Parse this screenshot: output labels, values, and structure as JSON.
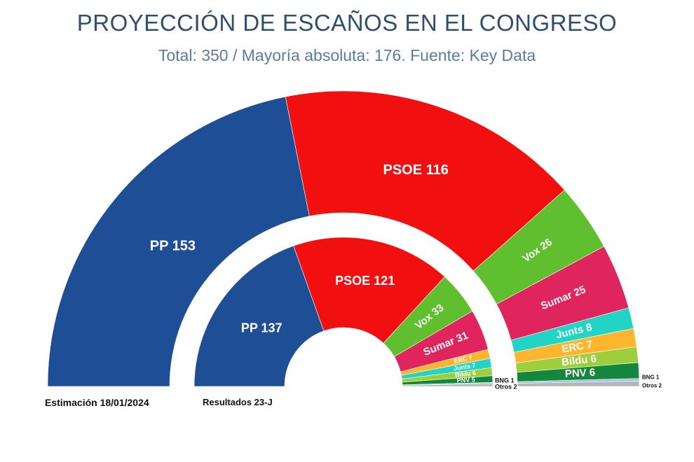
{
  "header": {
    "title": "PROYECCIÓN DE ESCAÑOS EN EL CONGRESO",
    "subtitle": "Total: 350 / Mayoría absoluta: 176. Fuente: Key Data"
  },
  "captions": {
    "outer": "Estimación 18/01/2024",
    "inner": "Resultados 23-J"
  },
  "chart_data": [
    {
      "type": "pie",
      "variant": "semicircle-parliament",
      "ring": "outer",
      "name": "Estimación 18/01/2024",
      "total": 350,
      "majority": 176,
      "slices": [
        {
          "party": "PP",
          "seats": 153,
          "label": "PP 153",
          "color": "#1e4f96"
        },
        {
          "party": "PSOE",
          "seats": 116,
          "label": "PSOE 116",
          "color": "#f20f0f"
        },
        {
          "party": "Vox",
          "seats": 26,
          "label": "Vox 26",
          "color": "#5fbf2e"
        },
        {
          "party": "Sumar",
          "seats": 25,
          "label": "Sumar 25",
          "color": "#e0245e"
        },
        {
          "party": "Junts",
          "seats": 8,
          "label": "Junts 8",
          "color": "#21d4c6"
        },
        {
          "party": "ERC",
          "seats": 7,
          "label": "ERC 7",
          "color": "#ffb52e"
        },
        {
          "party": "Bildu",
          "seats": 6,
          "label": "Bildu 6",
          "color": "#9ccf3b"
        },
        {
          "party": "PNV",
          "seats": 6,
          "label": "PNV 6",
          "color": "#14873d"
        },
        {
          "party": "BNG",
          "seats": 1,
          "label": "BNG 1",
          "color": "#9ec3e6"
        },
        {
          "party": "Otros",
          "seats": 2,
          "label": "Otros 2",
          "color": "#b5b5b5"
        }
      ]
    },
    {
      "type": "pie",
      "variant": "semicircle-parliament",
      "ring": "inner",
      "name": "Resultados 23-J",
      "total": 350,
      "slices": [
        {
          "party": "PP",
          "seats": 137,
          "label": "PP 137",
          "color": "#1e4f96"
        },
        {
          "party": "PSOE",
          "seats": 121,
          "label": "PSOE 121",
          "color": "#f20f0f"
        },
        {
          "party": "Vox",
          "seats": 33,
          "label": "Vox 33",
          "color": "#5fbf2e"
        },
        {
          "party": "Sumar",
          "seats": 31,
          "label": "Sumar 31",
          "color": "#e0245e"
        },
        {
          "party": "ERC",
          "seats": 7,
          "label": "ERC 7",
          "color": "#ffb52e"
        },
        {
          "party": "Junts",
          "seats": 7,
          "label": "Junts 7",
          "color": "#21d4c6"
        },
        {
          "party": "Bildu",
          "seats": 6,
          "label": "Bildu 6",
          "color": "#9ccf3b"
        },
        {
          "party": "PNV",
          "seats": 5,
          "label": "PNV 5",
          "color": "#14873d"
        },
        {
          "party": "BNG",
          "seats": 1,
          "label": "BNG 1",
          "color": "#9ec3e6"
        },
        {
          "party": "Otros",
          "seats": 2,
          "label": "Otros 2",
          "color": "#b5b5b5"
        }
      ]
    }
  ]
}
